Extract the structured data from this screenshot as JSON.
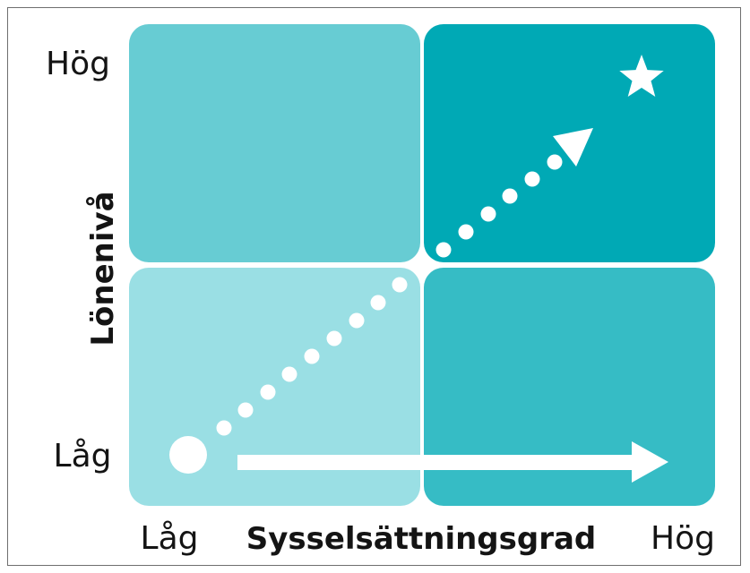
{
  "y_axis": {
    "title": "Lönenivå",
    "high_label": "Hög",
    "low_label": "Låg"
  },
  "x_axis": {
    "title": "Sysselsättningsgrad",
    "low_label": "Låg",
    "high_label": "Hög"
  },
  "colors": {
    "top_left": "#67ccd3",
    "top_right": "#00a9b5",
    "bottom_left": "#9adfe4",
    "bottom_right": "#36bcc5",
    "marker": "#ffffff",
    "text": "#141414"
  },
  "icons": {
    "start": "circle",
    "goal": "star"
  }
}
